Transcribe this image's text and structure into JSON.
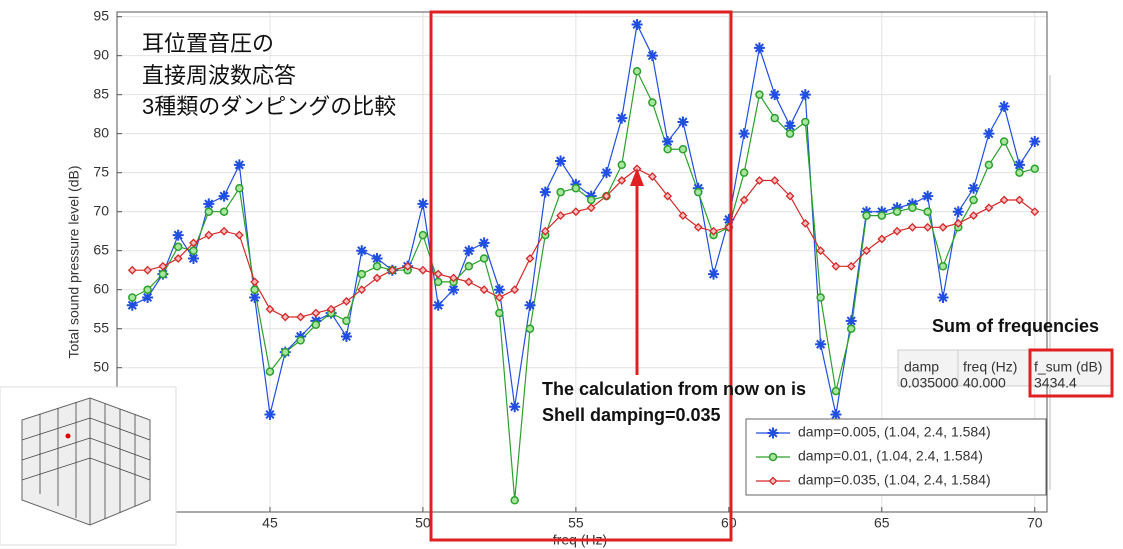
{
  "chart_data": {
    "type": "line",
    "title_lines": [
      "耳位置音圧の",
      "直接周波数応答",
      "3種類のダンピングの比較"
    ],
    "xlabel": "freq (Hz)",
    "ylabel": "Total sound pressure level (dB)",
    "x": [
      40.5,
      41,
      41.5,
      42,
      42.5,
      43,
      43.5,
      44,
      44.5,
      45,
      45.5,
      46,
      46.5,
      47,
      47.5,
      48,
      48.5,
      49,
      49.5,
      50,
      50.5,
      51,
      51.5,
      52,
      52.5,
      53,
      53.5,
      54,
      54.5,
      55,
      55.5,
      56,
      56.5,
      57,
      57.5,
      58,
      58.5,
      59,
      59.5,
      60,
      60.5,
      61,
      61.5,
      62,
      62.5,
      63,
      63.5,
      64,
      64.5,
      65,
      65.5,
      66,
      66.5,
      67,
      67.5,
      68,
      68.5,
      69,
      69.5,
      70
    ],
    "series": [
      {
        "name": "damp=0.005, (1.04, 2.4, 1.584)",
        "color": "#1f4ee0",
        "marker": "star",
        "values": [
          58,
          59,
          62,
          67,
          64,
          71,
          72,
          76,
          59,
          44,
          52,
          54,
          56,
          57,
          54,
          65,
          64,
          62.5,
          63,
          71,
          58,
          60,
          65,
          66,
          60,
          45,
          58,
          72.5,
          76.5,
          73.5,
          72,
          75,
          82,
          94,
          90,
          79,
          81.5,
          73,
          62,
          69,
          80,
          91,
          85,
          81,
          85,
          53,
          44,
          56,
          70,
          70,
          70.5,
          71,
          72,
          59,
          70,
          73,
          80,
          83.5,
          76,
          79
        ]
      },
      {
        "name": "damp=0.01, (1.04, 2.4, 1.584)",
        "color": "#2ca02c",
        "marker": "circle",
        "values": [
          59,
          60,
          62,
          65.5,
          65,
          70,
          70,
          73,
          60,
          49.5,
          52,
          53.5,
          55.5,
          57,
          56,
          62,
          63,
          62.5,
          62.5,
          67,
          61,
          61,
          63,
          64,
          57,
          33,
          55,
          67,
          72.5,
          73,
          71.5,
          72,
          76,
          88,
          84,
          78,
          78,
          72.5,
          67,
          68,
          75,
          85,
          82,
          80,
          81.5,
          59,
          47,
          55,
          69.5,
          69.5,
          70,
          70.5,
          70,
          63,
          68,
          71.5,
          76,
          79,
          75,
          75.5
        ]
      },
      {
        "name": "damp=0.035, (1.04, 2.4, 1.584)",
        "color": "#d62728",
        "marker": "diamond",
        "values": [
          62.5,
          62.5,
          63,
          64,
          66,
          67,
          67.5,
          67,
          61,
          57.5,
          56.5,
          56.5,
          57,
          57.5,
          58.5,
          60,
          61.5,
          62.5,
          63,
          62.5,
          62,
          61.5,
          61,
          60,
          59,
          60,
          64,
          67.5,
          69.5,
          70,
          70.5,
          72,
          74,
          75.5,
          74.5,
          72,
          69.5,
          68,
          67.5,
          68,
          71.5,
          74,
          74,
          72,
          68.5,
          65,
          63,
          63,
          65,
          66.5,
          67.5,
          68,
          68,
          68,
          68.5,
          69.5,
          70.5,
          71.5,
          71.5,
          70
        ]
      }
    ],
    "xlim": [
      40,
      70.4
    ],
    "ylim": [
      31.5,
      95.6
    ],
    "xticks": [
      45,
      50,
      55,
      60,
      65,
      70
    ],
    "yticks": [
      50,
      55,
      60,
      65,
      70,
      75,
      80,
      85,
      90,
      95
    ],
    "grid": true,
    "legend_position": "lower right",
    "annotations": [
      "The calculation from now on is",
      "Shell damping=0.035"
    ]
  },
  "summary": {
    "title": "Sum of frequencies",
    "headers": [
      "damp",
      "freq (Hz)",
      "f_sum (dB)"
    ],
    "rows": [
      [
        "0.035000",
        "40.000",
        "3434.4"
      ]
    ]
  }
}
